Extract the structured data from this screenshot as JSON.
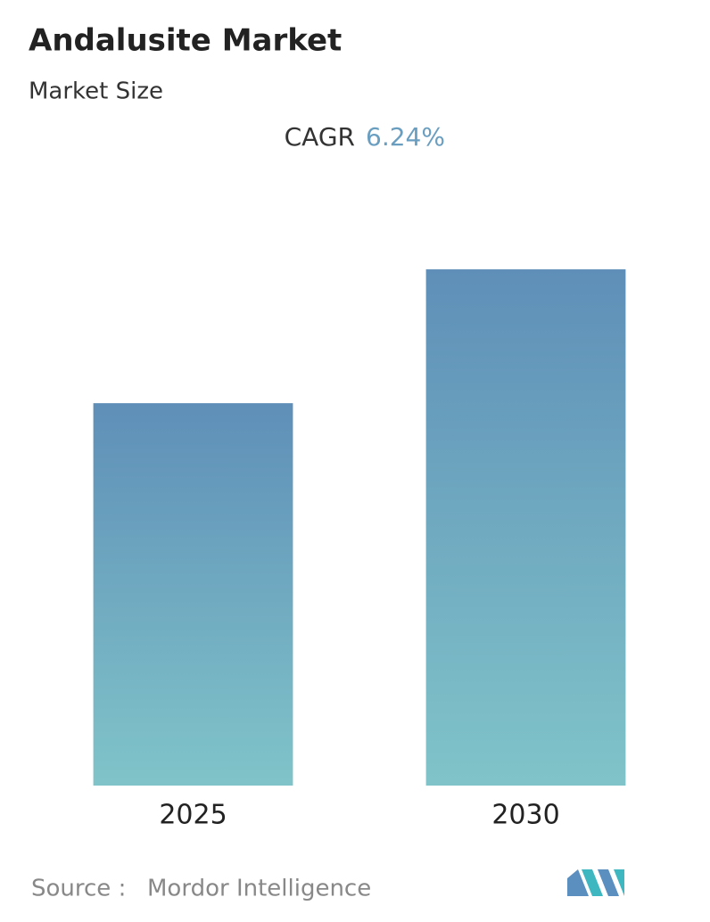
{
  "chart_data": {
    "type": "bar",
    "title": "Andalusite Market",
    "subtitle": "Market Size",
    "cagr_label": "CAGR",
    "cagr_value": "6.24%",
    "categories": [
      "2025",
      "2030"
    ],
    "values": [
      100,
      135
    ],
    "gradient": [
      "#5f8fb8",
      "#80c4c9"
    ],
    "cagr_color": "#6a9ec0",
    "ylim": [
      0,
      140
    ],
    "source_label": "Source :",
    "source": "Mordor Intelligence"
  }
}
